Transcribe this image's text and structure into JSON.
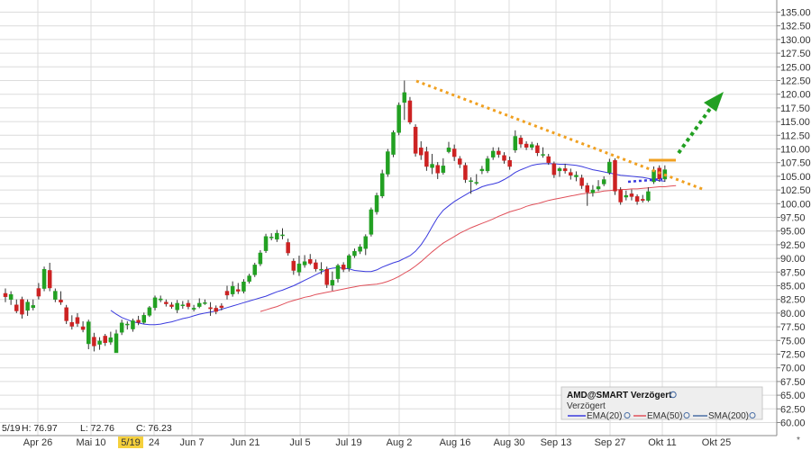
{
  "chart_data": {
    "type": "candlestick",
    "ticker_label": "AMD@SMART Verzögert",
    "legend_subtitle": "Verzögert",
    "ohlc_readout": {
      "date": "5/19",
      "high_label": "H: 76.97",
      "low_label": "L: 72.76",
      "close_label": "C: 76.23"
    },
    "x_tick_labels": [
      "Apr 26",
      "Mai 10",
      "5/19",
      "24",
      "Jun 7",
      "Jun 21",
      "Jul 5",
      "Jul 19",
      "Aug 2",
      "Aug 16",
      "Aug 30",
      "Sep 13",
      "Sep 27",
      "Okt 11",
      "Okt 25"
    ],
    "highlighted_x_label": "5/19",
    "ylim": [
      60,
      136
    ],
    "y_ticks": [
      "60.00",
      "62.50",
      "65.00",
      "67.50",
      "70.00",
      "72.50",
      "75.00",
      "77.50",
      "80.00",
      "82.50",
      "85.00",
      "87.50",
      "90.00",
      "92.50",
      "95.00",
      "97.50",
      "100.00",
      "102.50",
      "105.00",
      "107.50",
      "110.00",
      "112.50",
      "115.00",
      "117.50",
      "120.00",
      "122.50",
      "125.00",
      "127.50",
      "130.00",
      "132.50",
      "135.00"
    ],
    "grid": true,
    "candles": [
      [
        83.6,
        83.0,
        84.5,
        82.0
      ],
      [
        82.5,
        83.4,
        84.0,
        81.5
      ],
      [
        81.5,
        80.4,
        82.5,
        80.0
      ],
      [
        82.5,
        79.8,
        83.0,
        79.0
      ],
      [
        80.5,
        82.0,
        82.5,
        79.5
      ],
      [
        81.0,
        81.4,
        82.5,
        80.5
      ],
      [
        84.5,
        83.1,
        85.5,
        82.5
      ],
      [
        84.5,
        88.0,
        88.5,
        84.0
      ],
      [
        87.8,
        84.6,
        89.2,
        84.0
      ],
      [
        82.5,
        84.0,
        84.5,
        82.0
      ],
      [
        82.4,
        82.0,
        84.0,
        81.5
      ],
      [
        81.0,
        78.6,
        81.5,
        78.0
      ],
      [
        78.3,
        77.6,
        79.6,
        77.0
      ],
      [
        79.2,
        78.1,
        80.0,
        77.5
      ],
      [
        77.5,
        77.0,
        78.5,
        76.5
      ],
      [
        74.4,
        78.4,
        78.8,
        73.4
      ],
      [
        75.6,
        74.0,
        76.4,
        73.0
      ],
      [
        74.3,
        74.9,
        75.6,
        73.3
      ],
      [
        75.8,
        74.6,
        76.2,
        74.0
      ],
      [
        74.7,
        75.5,
        76.6,
        74.2
      ],
      [
        72.76,
        76.23,
        76.97,
        72.76
      ],
      [
        76.5,
        78.2,
        78.8,
        76.0
      ],
      [
        78.0,
        78.0,
        78.5,
        77.0
      ],
      [
        77.1,
        78.6,
        79.0,
        76.6
      ],
      [
        78.7,
        78.3,
        79.5,
        77.8
      ],
      [
        78.3,
        79.6,
        80.1,
        78.0
      ],
      [
        79.6,
        81.0,
        81.3,
        79.3
      ],
      [
        81.0,
        82.8,
        83.2,
        80.5
      ],
      [
        82.4,
        82.6,
        83.2,
        82.0
      ],
      [
        82.0,
        81.7,
        82.5,
        81.2
      ],
      [
        81.5,
        81.2,
        82.0,
        80.8
      ],
      [
        80.6,
        81.8,
        82.4,
        80.0
      ],
      [
        81.5,
        81.5,
        82.2,
        80.8
      ],
      [
        81.8,
        81.2,
        82.4,
        80.7
      ],
      [
        80.7,
        80.9,
        81.5,
        80.3
      ],
      [
        81.2,
        81.8,
        82.7,
        80.9
      ],
      [
        81.9,
        81.9,
        82.5,
        81.5
      ],
      [
        81.0,
        80.8,
        82.0,
        79.5
      ],
      [
        80.9,
        80.3,
        81.4,
        79.8
      ],
      [
        81.3,
        81.0,
        81.8,
        80.5
      ],
      [
        84.0,
        83.3,
        85.0,
        82.5
      ],
      [
        83.5,
        84.9,
        85.8,
        83.0
      ],
      [
        84.3,
        84.0,
        85.5,
        83.5
      ],
      [
        84.0,
        85.7,
        86.2,
        83.6
      ],
      [
        85.8,
        86.8,
        87.2,
        85.4
      ],
      [
        87.0,
        88.8,
        89.2,
        86.6
      ],
      [
        89.0,
        91.0,
        91.5,
        88.6
      ],
      [
        91.4,
        94.0,
        94.5,
        91.0
      ],
      [
        93.9,
        93.9,
        94.6,
        93.3
      ],
      [
        93.5,
        94.6,
        95.2,
        93.0
      ],
      [
        94.3,
        94.3,
        95.5,
        93.5
      ],
      [
        92.9,
        91.0,
        93.6,
        90.5
      ],
      [
        89.5,
        87.8,
        90.0,
        87.0
      ],
      [
        87.5,
        89.0,
        90.5,
        86.8
      ],
      [
        88.8,
        89.4,
        90.6,
        88.3
      ],
      [
        89.8,
        89.1,
        90.8,
        88.8
      ],
      [
        89.2,
        88.1,
        89.8,
        87.6
      ],
      [
        88.0,
        88.0,
        89.3,
        87.1
      ],
      [
        88.0,
        85.2,
        88.5,
        84.6
      ],
      [
        85.1,
        86.0,
        87.6,
        84.1
      ],
      [
        86.3,
        88.7,
        89.0,
        85.6
      ],
      [
        88.8,
        88.0,
        89.3,
        87.5
      ],
      [
        88.2,
        90.5,
        90.8,
        87.6
      ],
      [
        90.5,
        91.3,
        91.8,
        90.1
      ],
      [
        91.3,
        92.1,
        92.6,
        90.8
      ],
      [
        91.8,
        94.0,
        94.4,
        90.6
      ],
      [
        94.4,
        98.9,
        99.3,
        94.0
      ],
      [
        98.5,
        101.5,
        102.0,
        98.0
      ],
      [
        101.4,
        105.5,
        106.2,
        101.0
      ],
      [
        105.4,
        109.5,
        110.0,
        104.9
      ],
      [
        109.0,
        113.0,
        113.4,
        108.5
      ],
      [
        113.0,
        118.0,
        118.5,
        112.5
      ],
      [
        118.5,
        120.3,
        122.5,
        115.3
      ],
      [
        118.8,
        114.9,
        119.5,
        114.5
      ],
      [
        114.0,
        109.2,
        114.5,
        108.6
      ],
      [
        110.2,
        108.9,
        111.4,
        108.0
      ],
      [
        109.5,
        106.8,
        110.4,
        106.0
      ],
      [
        106.6,
        107.2,
        109.1,
        105.4
      ],
      [
        107.0,
        105.6,
        107.6,
        104.5
      ],
      [
        105.7,
        106.9,
        108.3,
        105.3
      ],
      [
        109.5,
        110.2,
        111.3,
        109.2
      ],
      [
        110.0,
        108.6,
        110.8,
        107.8
      ],
      [
        108.2,
        107.2,
        108.7,
        106.5
      ],
      [
        107.0,
        104.4,
        107.5,
        103.8
      ],
      [
        104.1,
        104.2,
        104.8,
        101.8
      ],
      [
        103.9,
        103.9,
        105.4,
        103.4
      ],
      [
        106.0,
        106.3,
        106.9,
        105.4
      ],
      [
        106.0,
        108.2,
        108.7,
        105.6
      ],
      [
        108.5,
        109.6,
        110.3,
        108.0
      ],
      [
        109.6,
        109.0,
        110.3,
        108.4
      ],
      [
        108.8,
        107.9,
        109.4,
        107.3
      ],
      [
        107.9,
        106.8,
        108.6,
        106.2
      ],
      [
        109.8,
        112.3,
        113.4,
        109.3
      ],
      [
        112.0,
        110.9,
        112.5,
        110.2
      ],
      [
        110.9,
        110.3,
        111.4,
        109.8
      ],
      [
        110.3,
        110.8,
        111.3,
        109.8
      ],
      [
        110.6,
        109.3,
        111.1,
        108.7
      ],
      [
        109.0,
        109.0,
        110.3,
        108.4
      ],
      [
        108.6,
        107.5,
        109.1,
        107.1
      ],
      [
        107.3,
        105.3,
        107.7,
        104.7
      ],
      [
        106.0,
        106.4,
        106.7,
        104.9
      ],
      [
        106.4,
        106.0,
        107.3,
        105.5
      ],
      [
        105.7,
        105.2,
        106.4,
        104.4
      ],
      [
        104.9,
        105.2,
        105.9,
        104.1
      ],
      [
        104.7,
        103.3,
        105.3,
        102.7
      ],
      [
        103.3,
        102.1,
        103.8,
        99.6
      ],
      [
        102.0,
        102.5,
        103.4,
        101.3
      ],
      [
        102.7,
        103.1,
        104.3,
        102.3
      ],
      [
        103.6,
        104.4,
        105.0,
        103.2
      ],
      [
        105.7,
        107.6,
        108.2,
        105.3
      ],
      [
        107.9,
        102.3,
        108.3,
        101.6
      ],
      [
        102.5,
        100.3,
        103.0,
        99.8
      ],
      [
        101.2,
        101.5,
        102.4,
        100.6
      ],
      [
        101.8,
        101.3,
        102.6,
        100.6
      ],
      [
        101.3,
        100.4,
        101.7,
        99.8
      ],
      [
        100.8,
        100.6,
        101.6,
        100.2
      ],
      [
        100.6,
        102.2,
        103.0,
        100.3
      ],
      [
        104.0,
        106.1,
        106.8,
        103.6
      ],
      [
        106.5,
        104.5,
        107.0,
        104.0
      ],
      [
        104.5,
        106.2,
        107.0,
        104.0
      ]
    ],
    "ema20": [
      null,
      null,
      null,
      null,
      null,
      null,
      null,
      null,
      null,
      null,
      null,
      null,
      null,
      null,
      null,
      null,
      null,
      null,
      null,
      80.5,
      79.8,
      79.2,
      78.8,
      78.4,
      78.2,
      78.0,
      77.9,
      77.9,
      78.0,
      78.2,
      78.4,
      78.7,
      79.0,
      79.2,
      79.5,
      79.8,
      80.0,
      80.2,
      80.4,
      80.7,
      81.0,
      81.3,
      81.6,
      81.9,
      82.2,
      82.5,
      82.8,
      83.1,
      83.5,
      83.9,
      84.2,
      84.6,
      85.0,
      85.5,
      86.0,
      86.5,
      87.0,
      87.5,
      88.0,
      88.2,
      88.3,
      88.2,
      88.1,
      87.8,
      87.7,
      87.6,
      87.6,
      87.9,
      88.4,
      88.8,
      89.2,
      89.5,
      90.0,
      90.5,
      91.3,
      92.5,
      94.0,
      95.8,
      97.5,
      98.8,
      99.6,
      100.4,
      101.0,
      101.6,
      102.2,
      102.6,
      103.1,
      103.4,
      103.6,
      103.9,
      104.4,
      105.0,
      105.7,
      106.2,
      106.6,
      107.0,
      107.2,
      107.3,
      107.3,
      107.3,
      107.2,
      107.2,
      107.1,
      107.0,
      106.8,
      106.5,
      106.2,
      106.0,
      105.8,
      105.6,
      105.4,
      105.2,
      105.1,
      105.0,
      104.9,
      104.8,
      104.6,
      104.4,
      104.2,
      104.1
    ],
    "ema50": [
      null,
      null,
      null,
      null,
      null,
      null,
      null,
      null,
      null,
      null,
      null,
      null,
      null,
      null,
      null,
      null,
      null,
      null,
      null,
      null,
      null,
      null,
      null,
      null,
      null,
      null,
      null,
      null,
      null,
      null,
      null,
      null,
      null,
      null,
      null,
      null,
      null,
      null,
      null,
      null,
      null,
      null,
      null,
      null,
      null,
      null,
      80.3,
      80.6,
      80.9,
      81.2,
      81.6,
      82.0,
      82.3,
      82.6,
      82.9,
      83.1,
      83.4,
      83.6,
      83.8,
      84.0,
      84.2,
      84.4,
      84.6,
      84.8,
      85.0,
      85.1,
      85.2,
      85.3,
      85.5,
      85.8,
      86.2,
      86.7,
      87.3,
      87.9,
      88.6,
      89.4,
      90.3,
      91.2,
      92.0,
      92.8,
      93.4,
      94.0,
      94.6,
      95.1,
      95.6,
      96.0,
      96.4,
      96.8,
      97.2,
      97.7,
      98.1,
      98.5,
      98.8,
      99.1,
      99.5,
      99.8,
      100.0,
      100.3,
      100.6,
      100.8,
      101.0,
      101.2,
      101.4,
      101.6,
      101.8,
      101.9,
      102.0,
      102.1,
      102.3,
      102.4,
      102.5,
      102.6,
      102.6,
      102.7,
      102.7,
      102.8,
      102.9,
      103.0,
      103.1,
      103.1,
      103.2,
      103.3
    ],
    "legend": [
      "EMA(20)",
      "EMA(50)",
      "SMA(200)"
    ],
    "colors": {
      "up": "#22a022",
      "down": "#cc2222",
      "ema20": "#3a3ade",
      "ema50": "#e0505a",
      "sma200": "#4a6fa5",
      "trendline": "#f0a020",
      "arrow": "#22a022",
      "highlight": "#f5d03c"
    }
  }
}
